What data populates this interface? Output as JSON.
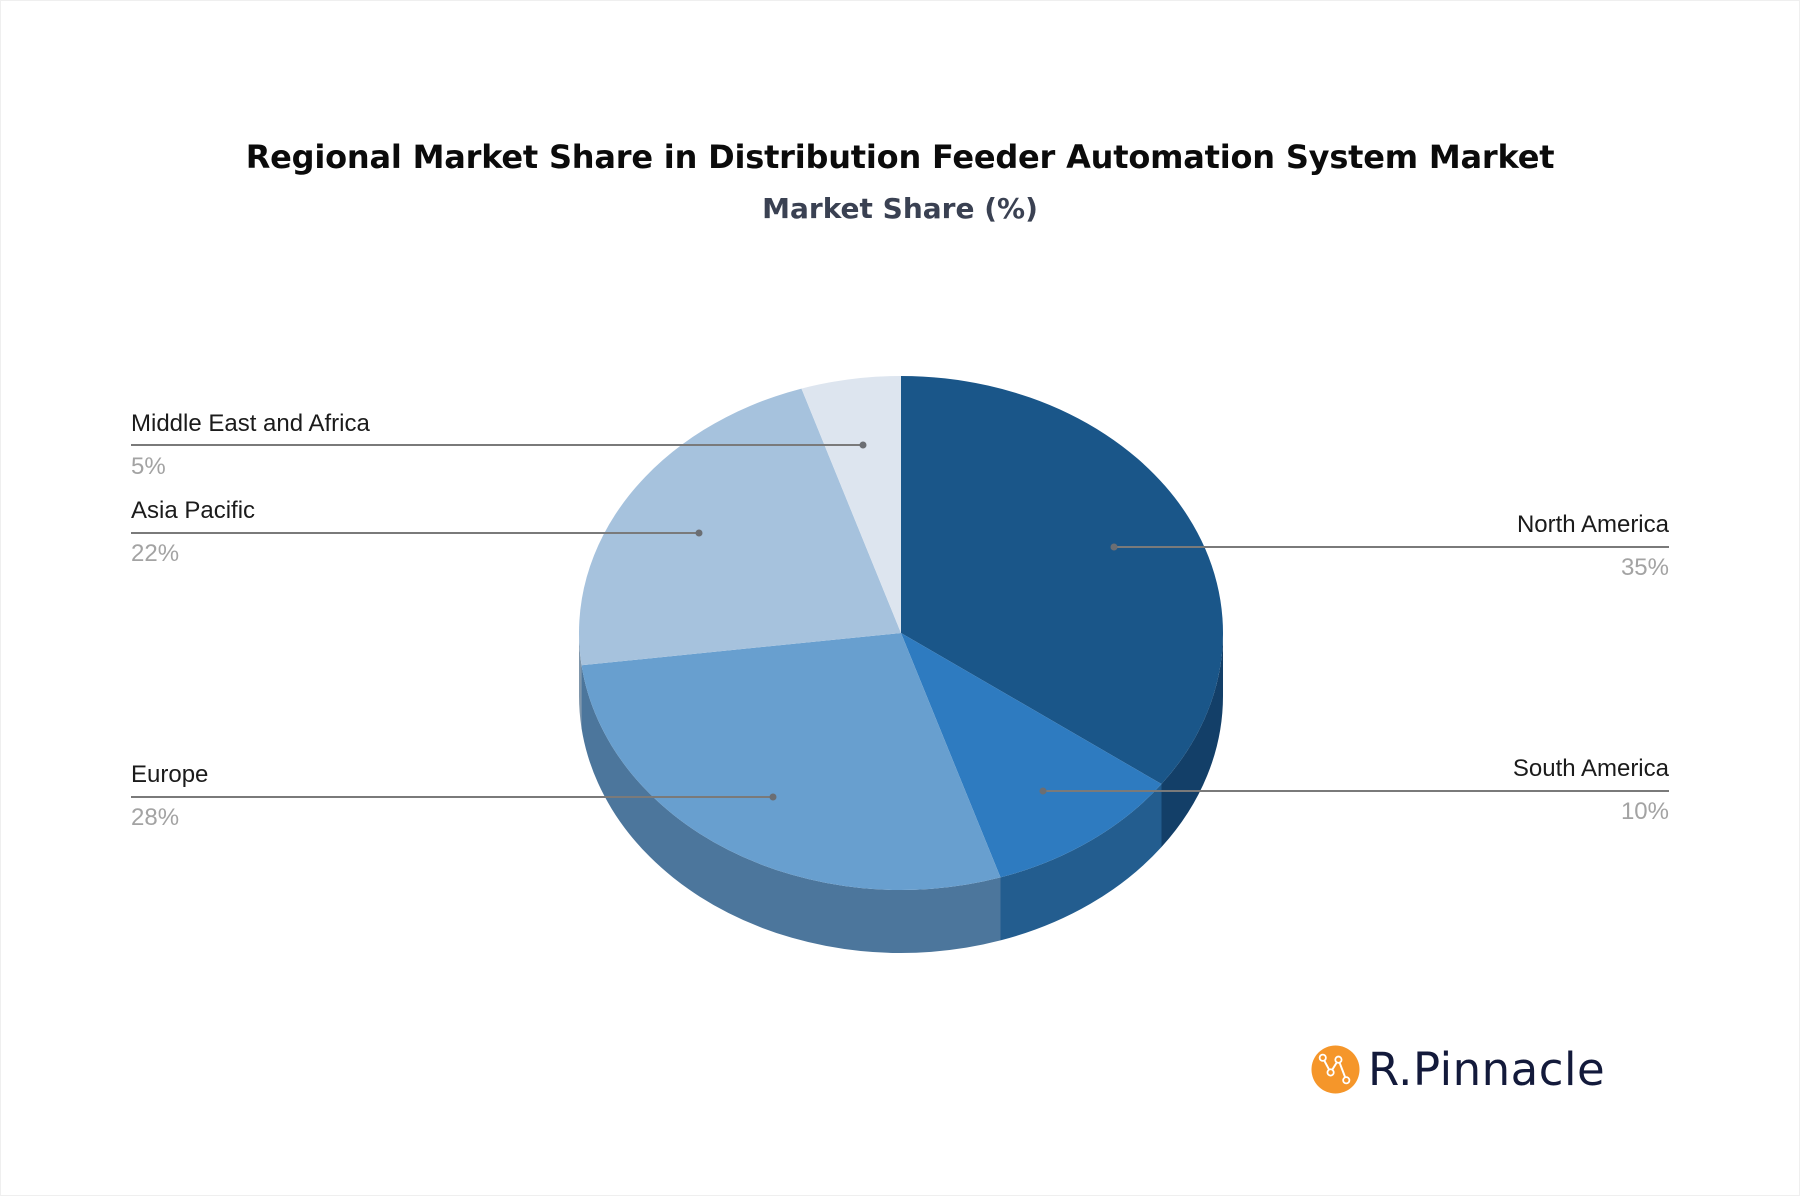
{
  "header": {
    "title": "Regional Market Share in Distribution Feeder Automation System Market",
    "subtitle": "Market Share (%)"
  },
  "brand": {
    "name": "R.Pinnacle",
    "icon": "chart-nodes-icon",
    "icon_color": "#f5962a",
    "text_color": "#131a3b"
  },
  "chart_data": {
    "type": "pie",
    "title": "Regional Market Share in Distribution Feeder Automation System Market",
    "subtitle": "Market Share (%)",
    "style": "3d",
    "start_angle": "12 o'clock, clockwise",
    "categories": [
      "North America",
      "South America",
      "Europe",
      "Asia Pacific",
      "Middle East and Africa"
    ],
    "values": [
      35,
      10,
      28,
      22,
      5
    ],
    "unit": "%",
    "labels": [
      "35%",
      "10%",
      "28%",
      "22%",
      "5%"
    ],
    "colors": {
      "top": [
        "#1a5689",
        "#2e7bc0",
        "#689fcf",
        "#a6c2dd",
        "#dde5ef"
      ],
      "side": [
        "#133f68",
        "#235d8f",
        "#4c769c",
        "#7f96ab",
        "#a9b2bc"
      ]
    },
    "legend_position": "callout labels with leader lines"
  },
  "labels": {
    "north_america": {
      "name": "North America",
      "value": "35%"
    },
    "south_america": {
      "name": "South America",
      "value": "10%"
    },
    "europe": {
      "name": "Europe",
      "value": "28%"
    },
    "asia_pacific": {
      "name": "Asia Pacific",
      "value": "22%"
    },
    "mea": {
      "name": "Middle East and Africa",
      "value": "5%"
    }
  }
}
